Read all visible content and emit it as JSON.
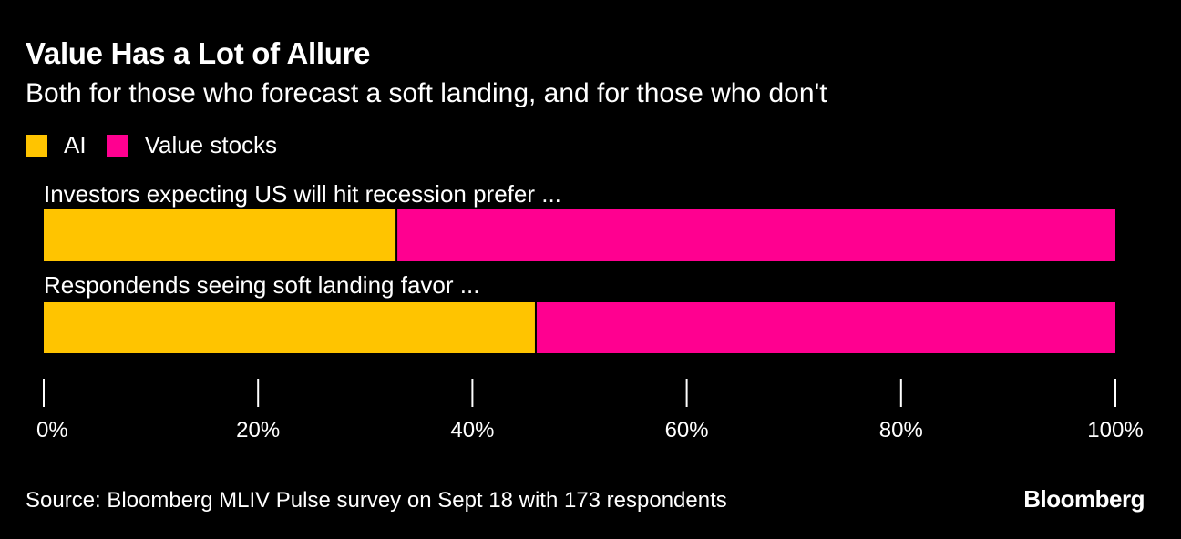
{
  "header": {
    "title": "Value Has a Lot of Allure",
    "subtitle": "Both for those who forecast a soft landing, and for those who don't"
  },
  "legend": [
    {
      "label": "AI",
      "color": "#ffc400"
    },
    {
      "label": "Value stocks",
      "color": "#ff0090"
    }
  ],
  "chart_data": {
    "type": "bar",
    "orientation": "horizontal",
    "stacked": true,
    "categories": [
      "Investors expecting US will hit recession prefer ...",
      "Respondends seeing soft landing favor ..."
    ],
    "series": [
      {
        "name": "AI",
        "color": "#ffc400",
        "values": [
          33,
          46
        ]
      },
      {
        "name": "Value stocks",
        "color": "#ff0090",
        "values": [
          67,
          54
        ]
      }
    ],
    "xlim": [
      0,
      100
    ],
    "xticks": [
      "0%",
      "20%",
      "40%",
      "60%",
      "80%",
      "100%"
    ],
    "xtick_values": [
      0,
      20,
      40,
      60,
      80,
      100
    ]
  },
  "footer": {
    "source": "Source: Bloomberg MLIV Pulse survey on Sept 18 with 173 respondents",
    "brand": "Bloomberg"
  }
}
